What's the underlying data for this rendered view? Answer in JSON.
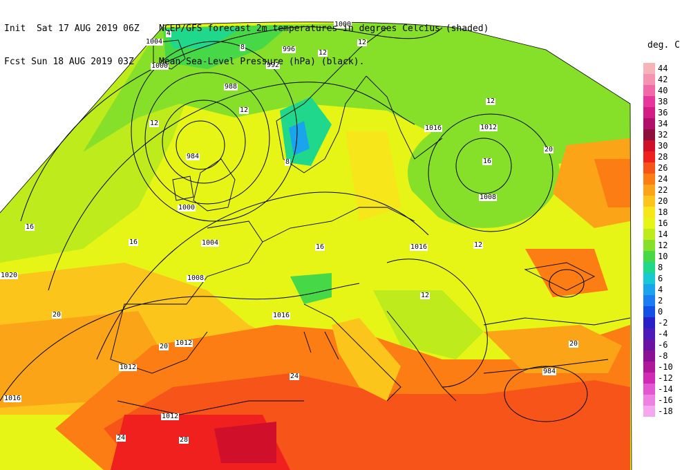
{
  "header": {
    "init_line": "Init  Sat 17 AUG 2019 06Z",
    "fcst_line": "Fcst Sun 18 AUG 2019 03Z",
    "title_line1": "NCEP/GFS forecast 2m temperatures in degrees Celcius (shaded)",
    "title_line2": "Mean Sea-Level Pressure (hPa) (black)."
  },
  "legend": {
    "title": "deg. C",
    "items": [
      {
        "value": "44",
        "color": "#f7b4b8"
      },
      {
        "value": "42",
        "color": "#f494b0"
      },
      {
        "value": "40",
        "color": "#f06aa8"
      },
      {
        "value": "38",
        "color": "#e8379c"
      },
      {
        "value": "36",
        "color": "#d31d86"
      },
      {
        "value": "34",
        "color": "#b0106a"
      },
      {
        "value": "32",
        "color": "#8c0f3c"
      },
      {
        "value": "30",
        "color": "#d0102a"
      },
      {
        "value": "28",
        "color": "#f0201e"
      },
      {
        "value": "26",
        "color": "#f7541a"
      },
      {
        "value": "24",
        "color": "#fb7d14"
      },
      {
        "value": "22",
        "color": "#fba418"
      },
      {
        "value": "20",
        "color": "#fcc51c"
      },
      {
        "value": "18",
        "color": "#f6e61a"
      },
      {
        "value": "16",
        "color": "#e6f516"
      },
      {
        "value": "14",
        "color": "#bdeb1c"
      },
      {
        "value": "12",
        "color": "#86e02a"
      },
      {
        "value": "10",
        "color": "#46d846"
      },
      {
        "value": "8",
        "color": "#20d88c"
      },
      {
        "value": "6",
        "color": "#18c8d2"
      },
      {
        "value": "4",
        "color": "#1aa4ec"
      },
      {
        "value": "2",
        "color": "#1a7ef2"
      },
      {
        "value": "0",
        "color": "#1250e6"
      },
      {
        "value": "-2",
        "color": "#2a20c8"
      },
      {
        "value": "-4",
        "color": "#4c1ab8"
      },
      {
        "value": "-6",
        "color": "#6a12a4"
      },
      {
        "value": "-8",
        "color": "#8a1096"
      },
      {
        "value": "-10",
        "color": "#b0189a"
      },
      {
        "value": "-12",
        "color": "#d02ab6"
      },
      {
        "value": "-14",
        "color": "#e258d0"
      },
      {
        "value": "-16",
        "color": "#ee82e2"
      },
      {
        "value": "-18",
        "color": "#f6a8ee"
      }
    ]
  },
  "map_labels": {
    "isobars": [
      "1000",
      "996",
      "992",
      "988",
      "984",
      "1004",
      "1008",
      "1012",
      "1016",
      "1020"
    ],
    "temps": [
      "4",
      "8",
      "12",
      "16",
      "20",
      "24",
      "28"
    ]
  }
}
